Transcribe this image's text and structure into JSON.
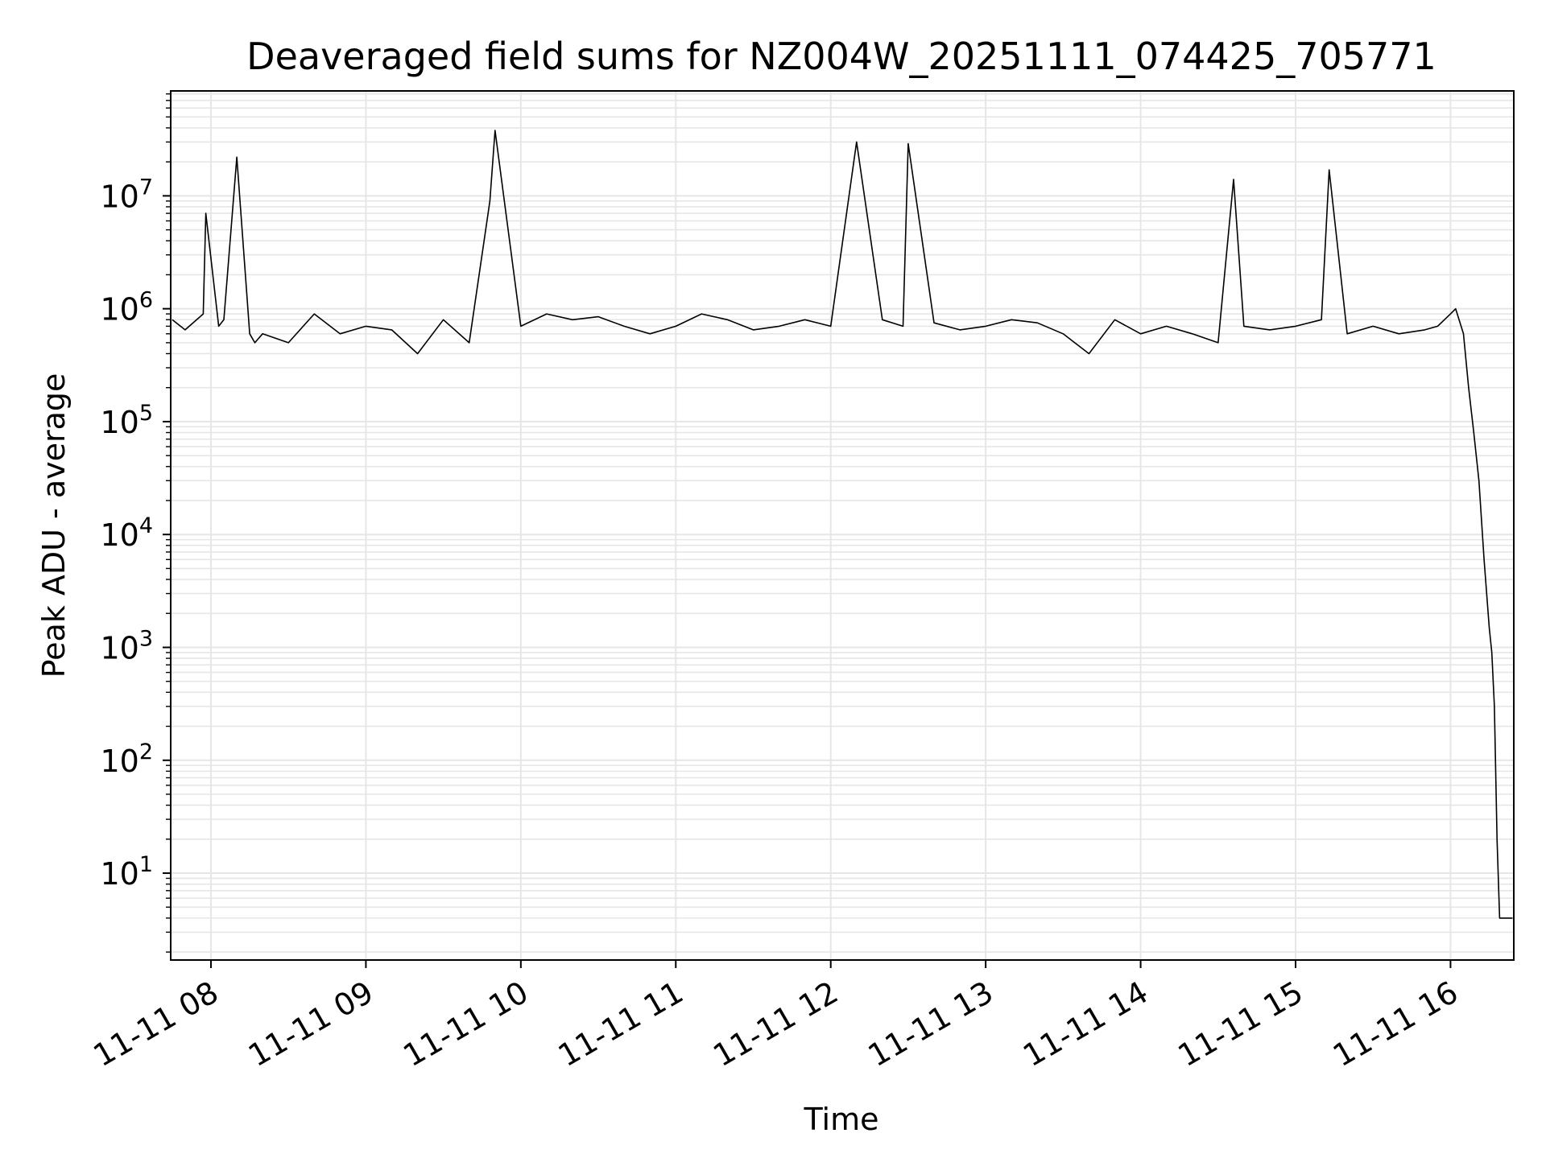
{
  "chart_data": {
    "type": "line",
    "title": "Deaveraged field sums for NZ004W_20251111_074425_705771",
    "xlabel": "Time",
    "ylabel": "Peak ADU - average",
    "yscale": "log",
    "ylim": [
      1.7,
      85000000
    ],
    "xlim": [
      "11-11 07:44:25",
      "11-11 16:24:30"
    ],
    "xticks": [
      {
        "label": "11-11 08",
        "value": "11-11 08:00"
      },
      {
        "label": "11-11 09",
        "value": "11-11 09:00"
      },
      {
        "label": "11-11 10",
        "value": "11-11 10:00"
      },
      {
        "label": "11-11 11",
        "value": "11-11 11:00"
      },
      {
        "label": "11-11 12",
        "value": "11-11 12:00"
      },
      {
        "label": "11-11 13",
        "value": "11-11 13:00"
      },
      {
        "label": "11-11 14",
        "value": "11-11 14:00"
      },
      {
        "label": "11-11 15",
        "value": "11-11 15:00"
      },
      {
        "label": "11-11 16",
        "value": "11-11 16:00"
      }
    ],
    "yticks": [
      {
        "base": "10",
        "exp": "1",
        "value": 10
      },
      {
        "base": "10",
        "exp": "2",
        "value": 100
      },
      {
        "base": "10",
        "exp": "3",
        "value": 1000
      },
      {
        "base": "10",
        "exp": "4",
        "value": 10000
      },
      {
        "base": "10",
        "exp": "5",
        "value": 100000
      },
      {
        "base": "10",
        "exp": "6",
        "value": 1000000
      },
      {
        "base": "10",
        "exp": "7",
        "value": 10000000
      }
    ],
    "grid": true,
    "line_color": "#000000",
    "grid_color": "#e6e6e6",
    "series": [
      {
        "x": [
          "11-11 07:45",
          "11-11 07:50",
          "11-11 07:57",
          "11-11 07:58",
          "11-11 08:03",
          "11-11 08:05",
          "11-11 08:10",
          "11-11 08:15",
          "11-11 08:17",
          "11-11 08:20",
          "11-11 08:30",
          "11-11 08:40",
          "11-11 08:50",
          "11-11 09:00",
          "11-11 09:10",
          "11-11 09:20",
          "11-11 09:30",
          "11-11 09:40",
          "11-11 09:48",
          "11-11 09:50",
          "11-11 10:00",
          "11-11 10:10",
          "11-11 10:20",
          "11-11 10:30",
          "11-11 10:40",
          "11-11 10:50",
          "11-11 11:00",
          "11-11 11:10",
          "11-11 11:20",
          "11-11 11:30",
          "11-11 11:40",
          "11-11 11:50",
          "11-11 12:00",
          "11-11 12:10",
          "11-11 12:20",
          "11-11 12:28",
          "11-11 12:30",
          "11-11 12:40",
          "11-11 12:50",
          "11-11 13:00",
          "11-11 13:10",
          "11-11 13:20",
          "11-11 13:30",
          "11-11 13:40",
          "11-11 13:50",
          "11-11 14:00",
          "11-11 14:10",
          "11-11 14:20",
          "11-11 14:30",
          "11-11 14:36",
          "11-11 14:40",
          "11-11 14:50",
          "11-11 15:00",
          "11-11 15:10",
          "11-11 15:13",
          "11-11 15:20",
          "11-11 15:30",
          "11-11 15:40",
          "11-11 15:50",
          "11-11 15:55",
          "11-11 16:00",
          "11-11 16:02",
          "11-11 16:05",
          "11-11 16:07",
          "11-11 16:09",
          "11-11 16:11",
          "11-11 16:13",
          "11-11 16:15",
          "11-11 16:16",
          "11-11 16:17",
          "11-11 16:18",
          "11-11 16:19",
          "11-11 16:20",
          "11-11 16:21",
          "11-11 16:22",
          "11-11 16:23",
          "11-11 16:24"
        ],
        "values": [
          800000,
          650000,
          900000,
          7000000,
          700000,
          800000,
          22000000,
          600000,
          500000,
          600000,
          500000,
          900000,
          600000,
          700000,
          650000,
          400000,
          800000,
          500000,
          9000000,
          38000000,
          700000,
          900000,
          800000,
          850000,
          700000,
          600000,
          700000,
          900000,
          800000,
          650000,
          700000,
          800000,
          700000,
          30000000,
          800000,
          700000,
          29000000,
          750000,
          650000,
          700000,
          800000,
          750000,
          600000,
          400000,
          800000,
          600000,
          700000,
          600000,
          500000,
          14000000,
          700000,
          650000,
          700000,
          800000,
          17000000,
          600000,
          700000,
          600000,
          650000,
          700000,
          900000,
          1000000,
          600000,
          200000,
          80000,
          30000,
          6000,
          1500,
          900,
          300,
          20,
          4,
          4,
          4,
          4,
          4,
          4
        ]
      }
    ]
  }
}
